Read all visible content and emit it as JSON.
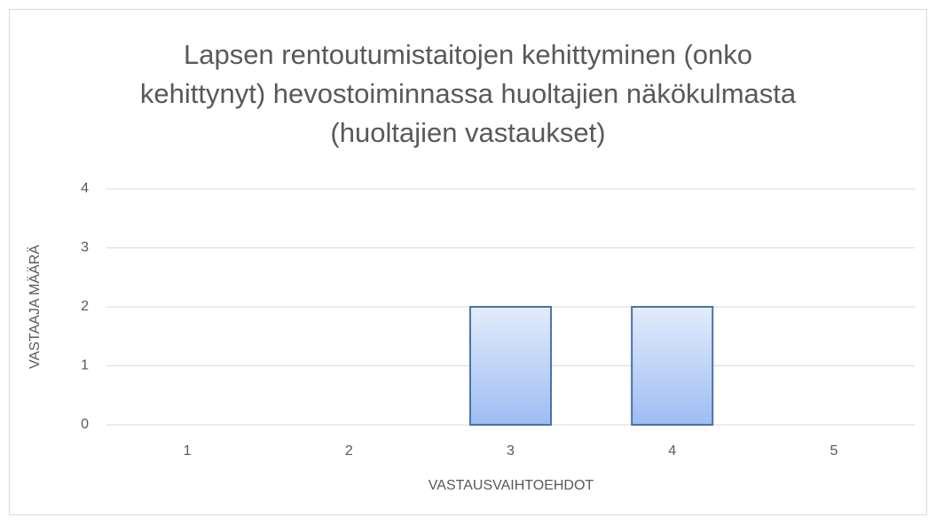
{
  "chart_data": {
    "type": "bar",
    "title": "Lapsen rentoutumistaitojen kehittyminen (onko kehittynyt) hevostoiminnassa huoltajien näkökulmasta (huoltajien vastaukset)",
    "xlabel": "VASTAUSVAIHTOEHDOT",
    "ylabel": "VASTAAJA MÄÄRÄ",
    "categories": [
      "1",
      "2",
      "3",
      "4",
      "5"
    ],
    "values": [
      0,
      0,
      2,
      2,
      0
    ],
    "color": "#4a72a8",
    "ylim": [
      0,
      4
    ],
    "yticks": [
      0,
      1,
      2,
      3,
      4
    ],
    "grid": true
  }
}
